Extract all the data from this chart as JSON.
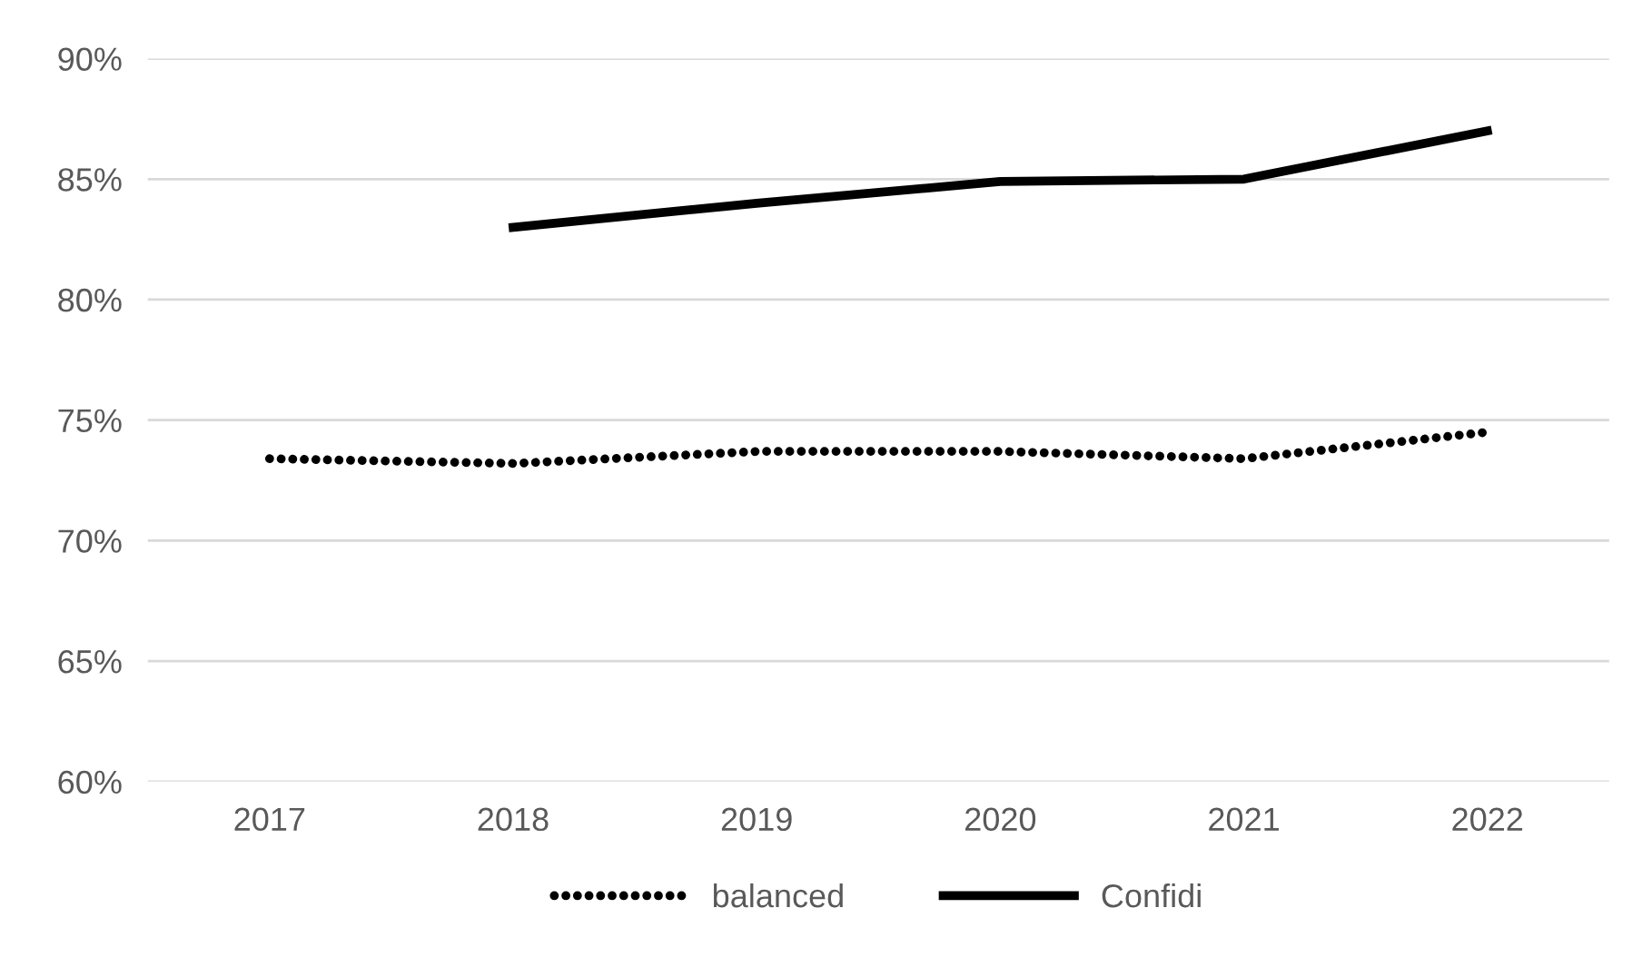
{
  "chart_data": {
    "type": "line",
    "categories": [
      "2017",
      "2018",
      "2019",
      "2020",
      "2021",
      "2022"
    ],
    "series": [
      {
        "name": "balanced",
        "color": "#000000",
        "line_style": "dotted",
        "values": [
          73.4,
          73.2,
          73.7,
          73.7,
          73.4,
          74.5
        ]
      },
      {
        "name": "Confidi",
        "color": "#000000",
        "line_style": "solid",
        "values": [
          null,
          83.0,
          84.0,
          84.9,
          85.0,
          87.0
        ]
      }
    ],
    "ylim": [
      60,
      90
    ],
    "yticks": [
      {
        "value": 60,
        "label": "60%"
      },
      {
        "value": 65,
        "label": "65%"
      },
      {
        "value": 70,
        "label": "70%"
      },
      {
        "value": 75,
        "label": "75%"
      },
      {
        "value": 80,
        "label": "80%"
      },
      {
        "value": 85,
        "label": "85%"
      },
      {
        "value": 90,
        "label": "90%"
      }
    ],
    "grid": "y",
    "legend": "bottom",
    "marker": "none"
  }
}
